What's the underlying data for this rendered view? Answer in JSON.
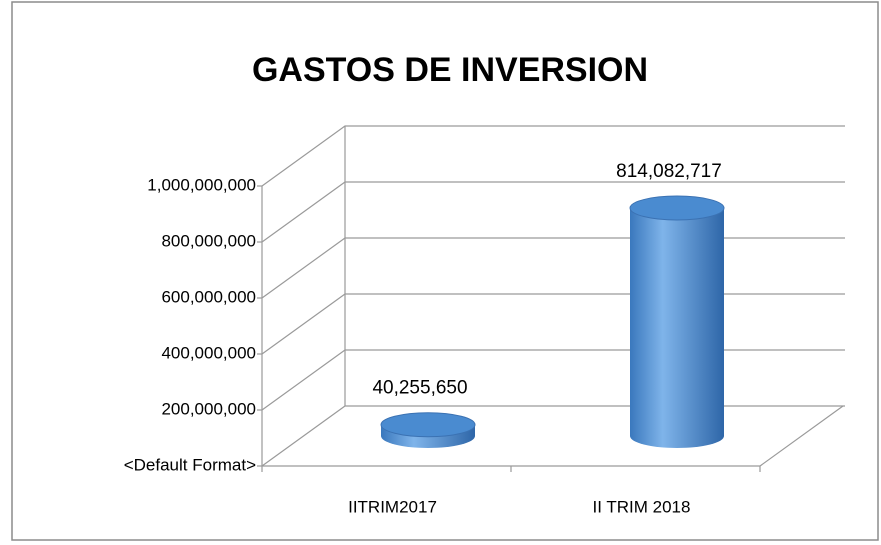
{
  "chart_data": {
    "type": "bar3d",
    "title": "GASTOS DE INVERSION",
    "categories": [
      "IITRIM2017",
      "II TRIM 2018"
    ],
    "values": [
      40255650,
      814082717
    ],
    "value_labels": [
      "40,255,650",
      "814,082,717"
    ],
    "color": "#4a8bd0",
    "ylim": [
      0,
      1000000000
    ],
    "yticks": [
      {
        "value": 0,
        "label": "<Default Format>"
      },
      {
        "value": 200000000,
        "label": "200,000,000"
      },
      {
        "value": 400000000,
        "label": "400,000,000"
      },
      {
        "value": 600000000,
        "label": "600,000,000"
      },
      {
        "value": 800000000,
        "label": "800,000,000"
      },
      {
        "value": 1000000000,
        "label": "1,000,000,000"
      }
    ],
    "grid": true
  }
}
